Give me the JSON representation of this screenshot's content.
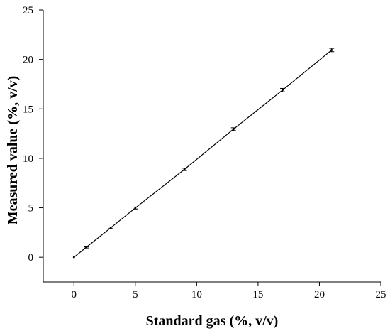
{
  "chart_data": {
    "type": "line",
    "title": "",
    "xlabel": "Standard gas (%, v/v)",
    "ylabel": "Measured value (%, v/v)",
    "xlim": [
      -2.5,
      25
    ],
    "ylim": [
      -2.5,
      25
    ],
    "x_ticks": [
      0,
      5,
      10,
      15,
      20,
      25
    ],
    "y_ticks": [
      0,
      5,
      10,
      15,
      20,
      25
    ],
    "x_tick_labels": [
      "0",
      "5",
      "10",
      "15",
      "20",
      "25"
    ],
    "y_tick_labels": [
      "0",
      "5",
      "10",
      "15",
      "20",
      "25"
    ],
    "grid": false,
    "series": [
      {
        "x": [
          0,
          1,
          3,
          5,
          9,
          13,
          17,
          21
        ],
        "y": [
          0,
          1.0,
          2.98,
          4.98,
          8.88,
          12.95,
          16.9,
          20.95
        ],
        "error": [
          0,
          0.06,
          0.08,
          0.1,
          0.12,
          0.14,
          0.17,
          0.17
        ],
        "color": "#000000"
      }
    ]
  }
}
